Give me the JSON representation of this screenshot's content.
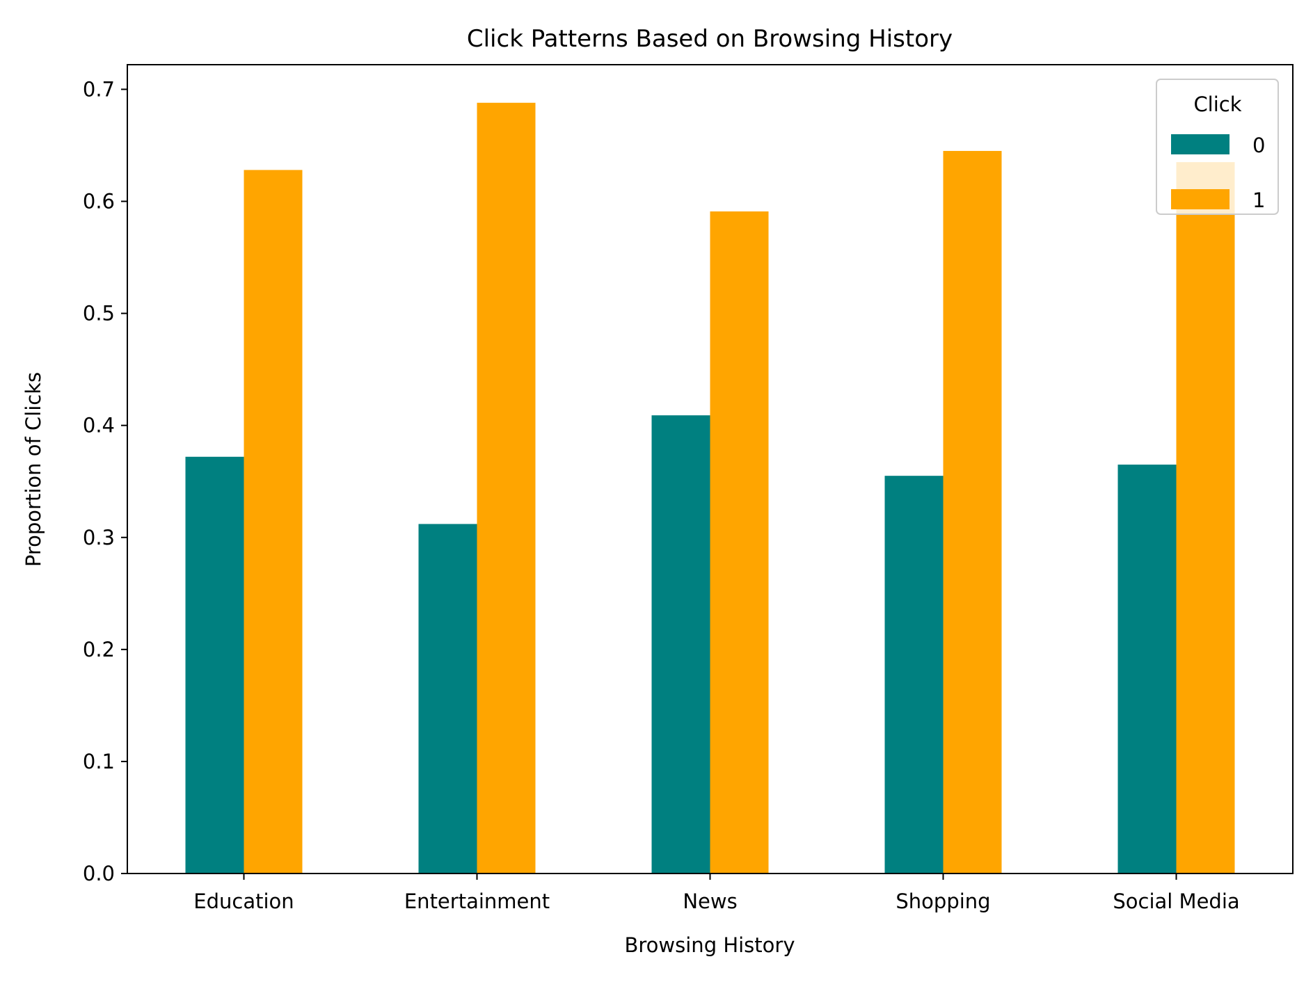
{
  "chart_data": {
    "type": "bar",
    "title": "Click Patterns Based on Browsing History",
    "xlabel": "Browsing History",
    "ylabel": "Proportion of Clicks",
    "categories": [
      "Education",
      "Entertainment",
      "News",
      "Shopping",
      "Social Media"
    ],
    "series": [
      {
        "name": "0",
        "color": "#008080",
        "values": [
          0.372,
          0.312,
          0.409,
          0.355,
          0.365
        ]
      },
      {
        "name": "1",
        "color": "#FFA500",
        "values": [
          0.628,
          0.688,
          0.591,
          0.645,
          0.635
        ]
      }
    ],
    "ylim": [
      0,
      0.722
    ],
    "yticks": [
      0.0,
      0.1,
      0.2,
      0.3,
      0.4,
      0.5,
      0.6,
      0.7
    ],
    "ytick_labels": [
      "0.0",
      "0.1",
      "0.2",
      "0.3",
      "0.4",
      "0.5",
      "0.6",
      "0.7"
    ],
    "grid": false,
    "legend": {
      "title": "Click",
      "placement": "top-right"
    }
  }
}
